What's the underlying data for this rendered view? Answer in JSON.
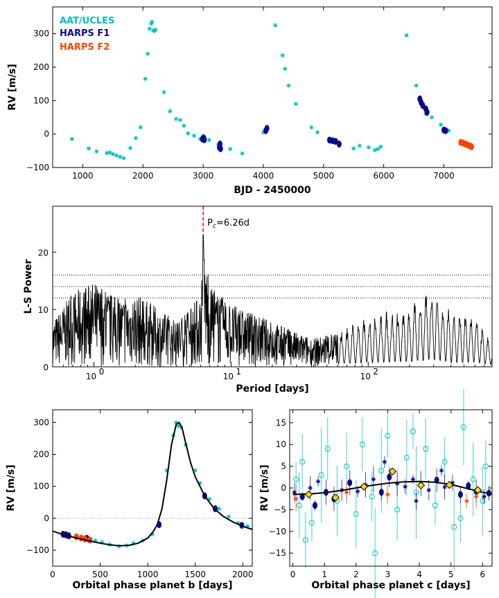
{
  "colors": {
    "aat": "#00bfc4",
    "harps_f1": "#0a0a8a",
    "harps_f2": "#ff4500",
    "model": "#000000",
    "peak_line": "#ff0000",
    "binned": "#ffd700"
  },
  "chart_data": [
    {
      "type": "scatter",
      "xlabel": "BJD - 2450000",
      "ylabel": "RV [m/s]",
      "xlim": [
        500,
        7800
      ],
      "ylim": [
        -100,
        380
      ],
      "xticks": [
        "1000",
        "2000",
        "3000",
        "4000",
        "5000",
        "6000",
        "7000"
      ],
      "yticks": [
        "−100",
        "0",
        "100",
        "200",
        "300"
      ],
      "legend": [
        "AAT/UCLES",
        "HARPS F1",
        "HARPS F2"
      ],
      "legend_placement": "top-left",
      "series": [
        {
          "name": "AAT/UCLES",
          "points": [
            [
              820,
              -15
            ],
            [
              1100,
              -43
            ],
            [
              1230,
              -52
            ],
            [
              1400,
              -57
            ],
            [
              1450,
              -55
            ],
            [
              1500,
              -60
            ],
            [
              1560,
              -64
            ],
            [
              1620,
              -68
            ],
            [
              1680,
              -72
            ],
            [
              1790,
              -42
            ],
            [
              1880,
              -12
            ],
            [
              1960,
              20
            ],
            [
              2040,
              165
            ],
            [
              2080,
              240
            ],
            [
              2110,
              315
            ],
            [
              2140,
              330
            ],
            [
              2150,
              335
            ],
            [
              2170,
              310
            ],
            [
              2190,
              308
            ],
            [
              2210,
              312
            ],
            [
              2350,
              125
            ],
            [
              2450,
              68
            ],
            [
              2550,
              45
            ],
            [
              2620,
              42
            ],
            [
              2680,
              25
            ],
            [
              2750,
              2
            ],
            [
              2850,
              -5
            ],
            [
              2950,
              -15
            ],
            [
              3000,
              -5
            ],
            [
              3100,
              -18
            ],
            [
              3250,
              -32
            ],
            [
              3450,
              -45
            ],
            [
              3650,
              -58
            ],
            [
              4000,
              5
            ],
            [
              4200,
              325
            ],
            [
              4320,
              235
            ],
            [
              4360,
              195
            ],
            [
              4420,
              145
            ],
            [
              4540,
              90
            ],
            [
              4800,
              20
            ],
            [
              4900,
              5
            ],
            [
              5100,
              -18
            ],
            [
              5500,
              -43
            ],
            [
              5600,
              -35
            ],
            [
              5750,
              -40
            ],
            [
              5850,
              -48
            ],
            [
              5900,
              -45
            ],
            [
              5950,
              -38
            ],
            [
              6380,
              295
            ],
            [
              6540,
              145
            ],
            [
              6700,
              60
            ],
            [
              6800,
              50
            ],
            [
              6950,
              28
            ],
            [
              7080,
              10
            ]
          ]
        },
        {
          "name": "HARPS F1",
          "points": [
            [
              2990,
              -15
            ],
            [
              3010,
              -12
            ],
            [
              3020,
              -17
            ],
            [
              3270,
              -40
            ],
            [
              3280,
              -30
            ],
            [
              3290,
              -44
            ],
            [
              4040,
              10
            ],
            [
              4060,
              17
            ],
            [
              5100,
              -18
            ],
            [
              5150,
              -20
            ],
            [
              5200,
              -22
            ],
            [
              5260,
              -30
            ],
            [
              6600,
              105
            ],
            [
              6620,
              95
            ],
            [
              6650,
              85
            ],
            [
              6700,
              75
            ],
            [
              6720,
              65
            ],
            [
              7000,
              12
            ],
            [
              7030,
              10
            ]
          ]
        },
        {
          "name": "HARPS F2",
          "points": [
            [
              7280,
              -25
            ],
            [
              7320,
              -27
            ],
            [
              7360,
              -30
            ],
            [
              7400,
              -33
            ],
            [
              7440,
              -36
            ],
            [
              7460,
              -38
            ]
          ]
        }
      ]
    },
    {
      "type": "line",
      "xlabel": "Period [days]",
      "ylabel": "L-S Power",
      "xscale": "log",
      "xlim": [
        0.5,
        800
      ],
      "ylim": [
        0,
        28
      ],
      "xticks": [
        "10",
        "10",
        "10"
      ],
      "xtick_exponents": [
        "0",
        "1",
        "2"
      ],
      "yticks": [
        "0",
        "10",
        "20"
      ],
      "fap_levels": [
        12,
        14,
        16
      ],
      "annotation": {
        "prefix": "P",
        "subscript": "c",
        "value": "=6.26d"
      },
      "peak_period": 6.26,
      "peak_power": 23,
      "envelope": [
        [
          0.5,
          8
        ],
        [
          0.7,
          13
        ],
        [
          1,
          15
        ],
        [
          1.5,
          12
        ],
        [
          2,
          13
        ],
        [
          3,
          10
        ],
        [
          4,
          8
        ],
        [
          5,
          10
        ],
        [
          6,
          13
        ],
        [
          6.26,
          23
        ],
        [
          7,
          14
        ],
        [
          10,
          11
        ],
        [
          15,
          9
        ],
        [
          20,
          8
        ],
        [
          30,
          6
        ],
        [
          40,
          5
        ],
        [
          60,
          6
        ],
        [
          100,
          9
        ],
        [
          150,
          10
        ],
        [
          200,
          10
        ],
        [
          280,
          15
        ],
        [
          400,
          10
        ],
        [
          600,
          9
        ],
        [
          800,
          4
        ]
      ]
    },
    {
      "type": "scatter",
      "xlabel": "Orbital phase planet b [days]",
      "ylabel": "RV [m/s]",
      "xlim": [
        0,
        2100
      ],
      "ylim": [
        -150,
        340
      ],
      "xticks": [
        "0",
        "500",
        "1000",
        "1500",
        "2000"
      ],
      "yticks": [
        "−100",
        "0",
        "100",
        "200",
        "300"
      ],
      "model": [
        [
          0,
          -40
        ],
        [
          100,
          -50
        ],
        [
          200,
          -58
        ],
        [
          300,
          -65
        ],
        [
          400,
          -72
        ],
        [
          500,
          -78
        ],
        [
          600,
          -83
        ],
        [
          700,
          -86
        ],
        [
          800,
          -85
        ],
        [
          900,
          -78
        ],
        [
          1000,
          -62
        ],
        [
          1050,
          -45
        ],
        [
          1100,
          -20
        ],
        [
          1150,
          30
        ],
        [
          1200,
          120
        ],
        [
          1250,
          230
        ],
        [
          1300,
          295
        ],
        [
          1330,
          300
        ],
        [
          1360,
          285
        ],
        [
          1400,
          235
        ],
        [
          1450,
          175
        ],
        [
          1500,
          130
        ],
        [
          1600,
          70
        ],
        [
          1700,
          30
        ],
        [
          1800,
          5
        ],
        [
          1900,
          -12
        ],
        [
          2000,
          -25
        ],
        [
          2100,
          -35
        ]
      ],
      "series": [
        {
          "name": "AAT/UCLES",
          "points": [
            [
              150,
              -50
            ],
            [
              250,
              -55
            ],
            [
              300,
              -60
            ],
            [
              350,
              -58
            ],
            [
              400,
              -65
            ],
            [
              450,
              -70
            ],
            [
              520,
              -75
            ],
            [
              600,
              -82
            ],
            [
              700,
              -88
            ],
            [
              780,
              -85
            ],
            [
              850,
              -78
            ],
            [
              950,
              -70
            ],
            [
              1050,
              -50
            ],
            [
              1200,
              150
            ],
            [
              1270,
              260
            ],
            [
              1300,
              300
            ],
            [
              1320,
              290
            ],
            [
              1350,
              285
            ],
            [
              1400,
              230
            ],
            [
              1500,
              150
            ],
            [
              1550,
              110
            ],
            [
              1650,
              60
            ],
            [
              1750,
              30
            ],
            [
              1850,
              5
            ],
            [
              1950,
              -15
            ],
            [
              2050,
              -25
            ]
          ]
        },
        {
          "name": "HARPS F1",
          "points": [
            [
              110,
              -50
            ],
            [
              140,
              -52
            ],
            [
              170,
              -55
            ],
            [
              360,
              -63
            ],
            [
              1120,
              -20
            ],
            [
              1600,
              70
            ],
            [
              1710,
              30
            ],
            [
              1990,
              -22
            ]
          ]
        },
        {
          "name": "HARPS F2",
          "points": [
            [
              250,
              -58
            ],
            [
              300,
              -62
            ],
            [
              340,
              -65
            ],
            [
              390,
              -68
            ]
          ]
        }
      ]
    },
    {
      "type": "scatter",
      "xlabel": "Orbital phase planet c [days]",
      "ylabel": "RV [m/s]",
      "xlim": [
        -0.1,
        6.3
      ],
      "ylim": [
        -18,
        18
      ],
      "xticks": [
        "0",
        "1",
        "2",
        "3",
        "4",
        "5",
        "6"
      ],
      "yticks": [
        "−15",
        "−10",
        "−5",
        "0",
        "5",
        "10",
        "15"
      ],
      "model": [
        [
          0,
          -1.5
        ],
        [
          0.5,
          -1.4
        ],
        [
          1,
          -1.1
        ],
        [
          1.5,
          -0.6
        ],
        [
          2,
          0
        ],
        [
          2.5,
          0.6
        ],
        [
          3,
          1.1
        ],
        [
          3.5,
          1.4
        ],
        [
          4,
          1.5
        ],
        [
          4.5,
          1.3
        ],
        [
          5,
          0.8
        ],
        [
          5.5,
          -0.1
        ],
        [
          6,
          -1
        ],
        [
          6.3,
          -1.4
        ]
      ],
      "binned": [
        [
          0.5,
          -1.5
        ],
        [
          1.35,
          -2.2
        ],
        [
          2.25,
          0.3
        ],
        [
          3.15,
          3.8
        ],
        [
          4.05,
          0.6
        ],
        [
          4.95,
          0.7
        ],
        [
          5.85,
          -0.5
        ]
      ],
      "series": [
        {
          "name": "AAT/UCLES",
          "points": [
            [
              0.1,
              2
            ],
            [
              0.2,
              -4
            ],
            [
              0.3,
              6
            ],
            [
              0.6,
              -8
            ],
            [
              0.9,
              3
            ],
            [
              1.1,
              9
            ],
            [
              1.4,
              -3
            ],
            [
              1.7,
              5
            ],
            [
              2.0,
              -6
            ],
            [
              2.2,
              10
            ],
            [
              2.5,
              -2
            ],
            [
              2.8,
              4
            ],
            [
              3.0,
              12
            ],
            [
              3.3,
              -5
            ],
            [
              3.6,
              7
            ],
            [
              3.9,
              -1
            ],
            [
              4.2,
              9
            ],
            [
              4.5,
              -4
            ],
            [
              4.8,
              6
            ],
            [
              5.1,
              -9
            ],
            [
              5.4,
              14
            ],
            [
              5.7,
              2
            ],
            [
              6.0,
              -3
            ],
            [
              6.1,
              5
            ],
            [
              0.4,
              -12
            ],
            [
              2.6,
              -15
            ],
            [
              3.8,
              13
            ],
            [
              5.3,
              -7
            ]
          ]
        },
        {
          "name": "HARPS F1",
          "points": [
            [
              0.05,
              -1
            ],
            [
              0.3,
              -2
            ],
            [
              0.55,
              0
            ],
            [
              0.8,
              1.5
            ],
            [
              1.05,
              -1
            ],
            [
              1.3,
              -2.5
            ],
            [
              1.55,
              -0.5
            ],
            [
              1.8,
              1.2
            ],
            [
              2.05,
              -0.8
            ],
            [
              2.3,
              0.7
            ],
            [
              2.55,
              2
            ],
            [
              2.8,
              -1
            ],
            [
              3.05,
              2.5
            ],
            [
              3.3,
              1
            ],
            [
              3.55,
              0.3
            ],
            [
              3.8,
              2
            ],
            [
              4.05,
              1
            ],
            [
              4.3,
              -0.5
            ],
            [
              4.55,
              1.8
            ],
            [
              4.8,
              0.2
            ],
            [
              5.05,
              1.2
            ],
            [
              5.3,
              -1.5
            ],
            [
              5.55,
              0.5
            ],
            [
              5.8,
              -0.8
            ],
            [
              6.05,
              -2
            ],
            [
              6.2,
              -1.2
            ],
            [
              0.7,
              -4
            ],
            [
              2.9,
              6
            ],
            [
              3.9,
              -3
            ],
            [
              4.7,
              4
            ]
          ]
        },
        {
          "name": "HARPS F2",
          "points": [
            [
              0.1,
              -2.5
            ],
            [
              1.7,
              -1
            ],
            [
              3.0,
              -1.5
            ],
            [
              5.5,
              -3
            ],
            [
              5.8,
              -2
            ]
          ]
        }
      ]
    }
  ]
}
